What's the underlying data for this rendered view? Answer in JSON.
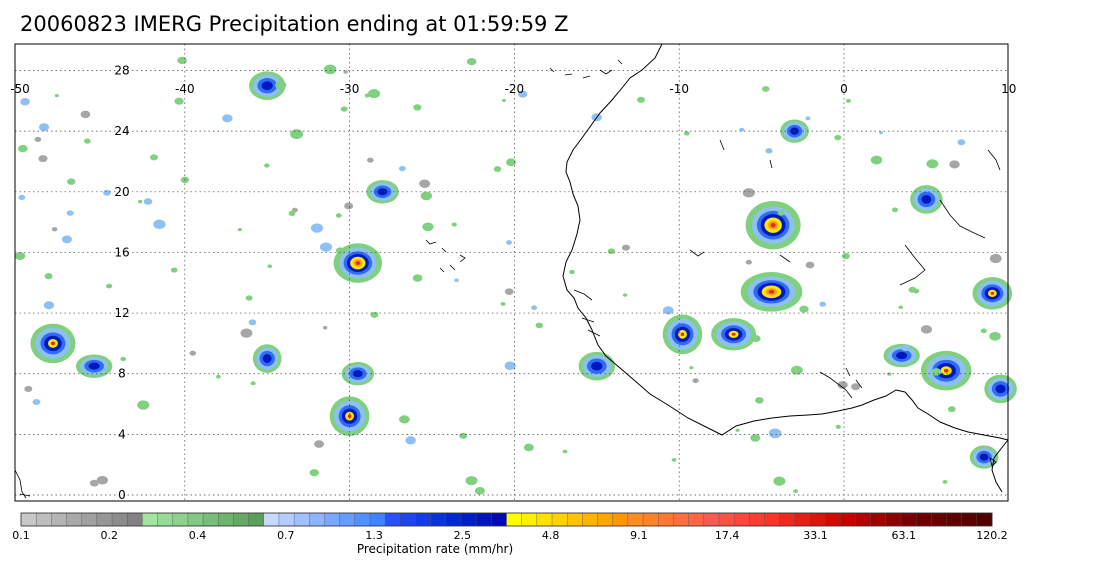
{
  "title": "20060823 IMERG Precipitation ending at 01:59:59 Z",
  "map": {
    "projection": "equirectangular",
    "lon_range": [
      -50,
      10
    ],
    "lat_range": [
      -0.5,
      30
    ],
    "lon_ticks": [
      "-50",
      "-40",
      "-30",
      "-20",
      "-10",
      "0",
      "10"
    ],
    "lat_ticks": [
      "0",
      "4",
      "8",
      "12",
      "16",
      "20",
      "24",
      "28"
    ],
    "grid": "dotted",
    "coastline_color": "#000000"
  },
  "colorbar": {
    "title": "Precipitation rate (mm/hr)",
    "labels": [
      "0.1",
      "0.2",
      "0.4",
      "0.7",
      "1.3",
      "2.5",
      "4.8",
      "9.1",
      "17.4",
      "33.1",
      "63.1",
      "120.2"
    ],
    "colors": [
      "#c8c8c8",
      "#bebebe",
      "#b4b4b4",
      "#aaaaaa",
      "#a0a0a0",
      "#969696",
      "#8c8c8c",
      "#828282",
      "#a0e6a0",
      "#96dc96",
      "#8cd28c",
      "#82c882",
      "#78be78",
      "#6eb46e",
      "#64aa64",
      "#5aa05a",
      "#c8d8ff",
      "#b4ccff",
      "#a0c0ff",
      "#8cb4ff",
      "#78a8ff",
      "#649cff",
      "#5090ff",
      "#3c84ff",
      "#2850ff",
      "#1e46f0",
      "#143ce6",
      "#0a32dc",
      "#0028d2",
      "#001ec8",
      "#0014be",
      "#000ab4",
      "#ffff00",
      "#fff000",
      "#ffe100",
      "#ffd200",
      "#ffc300",
      "#ffb400",
      "#ffa500",
      "#ff9600",
      "#ff8c1e",
      "#ff8228",
      "#ff7832",
      "#ff6e3c",
      "#ff6446",
      "#ff5a50",
      "#ff5046",
      "#ff463c",
      "#ff3c32",
      "#ff3228",
      "#f0281e",
      "#e61e14",
      "#dc140a",
      "#d20a00",
      "#c80000",
      "#b40000",
      "#a00000",
      "#8c0000",
      "#780000",
      "#700000",
      "#680000",
      "#600000",
      "#580000",
      "#500000"
    ]
  },
  "precip_cells": [
    {
      "lon": -29.5,
      "lat": 15.3,
      "peak": "extreme"
    },
    {
      "lon": -4.3,
      "lat": 17.8,
      "peak": "extreme"
    },
    {
      "lon": -4.4,
      "lat": 13.4,
      "peak": "extreme"
    },
    {
      "lon": -9.8,
      "lat": 10.6,
      "peak": "heavy"
    },
    {
      "lon": -6.7,
      "lat": 10.6,
      "peak": "heavy"
    },
    {
      "lon": 6.2,
      "lat": 8.2,
      "peak": "heavy"
    },
    {
      "lon": 9.0,
      "lat": 13.3,
      "peak": "heavy"
    },
    {
      "lon": -48.0,
      "lat": 10.0,
      "peak": "heavy"
    },
    {
      "lon": -45.5,
      "lat": 8.5,
      "peak": "moderate"
    },
    {
      "lon": -30.0,
      "lat": 5.2,
      "peak": "heavy"
    },
    {
      "lon": -29.5,
      "lat": 8.0,
      "peak": "moderate"
    },
    {
      "lon": -15.0,
      "lat": 8.5,
      "peak": "moderate"
    },
    {
      "lon": -3.0,
      "lat": 24.0,
      "peak": "moderate"
    },
    {
      "lon": 5.0,
      "lat": 19.5,
      "peak": "moderate"
    },
    {
      "lon": 3.5,
      "lat": 9.2,
      "peak": "moderate"
    },
    {
      "lon": -35.0,
      "lat": 9.0,
      "peak": "moderate"
    },
    {
      "lon": -28.0,
      "lat": 20.0,
      "peak": "moderate"
    },
    {
      "lon": -35.0,
      "lat": 27.0,
      "peak": "moderate"
    },
    {
      "lon": 8.5,
      "lat": 2.5,
      "peak": "moderate"
    },
    {
      "lon": 9.5,
      "lat": 7.0,
      "peak": "moderate"
    }
  ]
}
